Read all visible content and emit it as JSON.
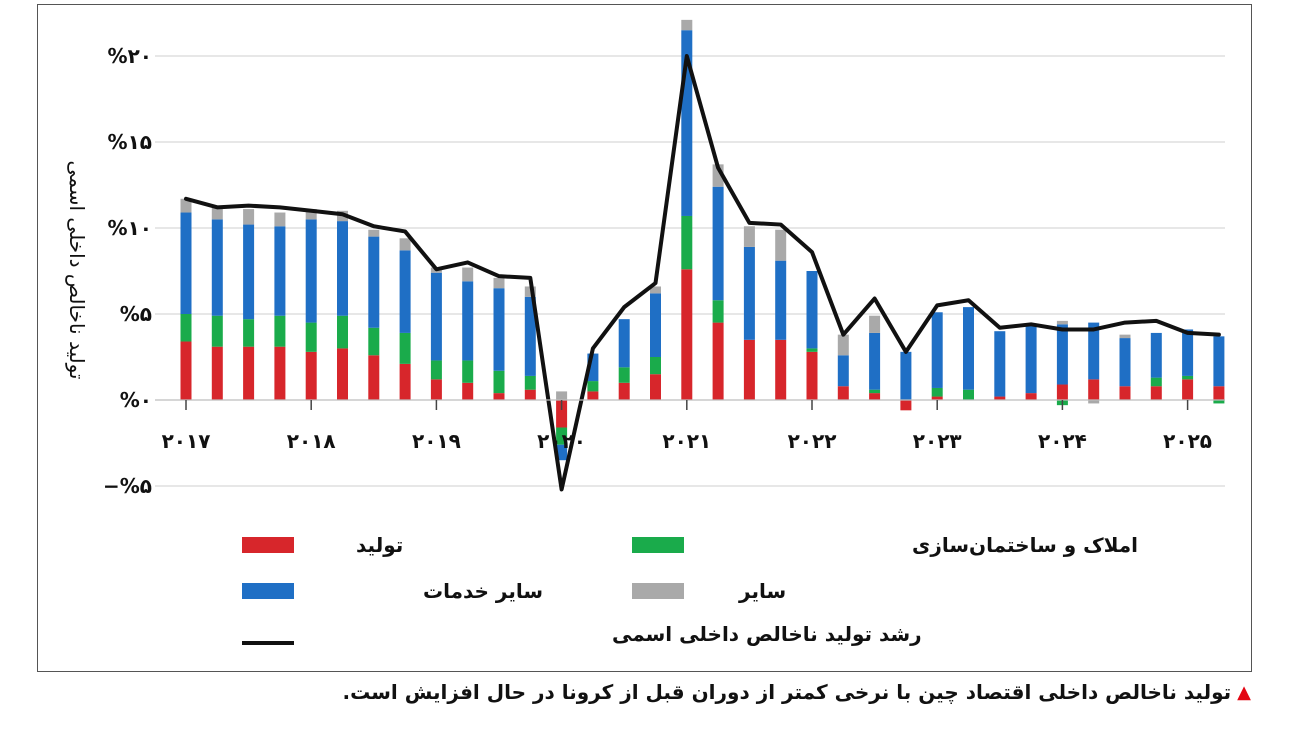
{
  "chart_data": {
    "type": "bar",
    "ylabel": "تولید ناخالص داخلی اسمی",
    "ylim": [
      -5,
      20
    ],
    "yticks": [
      -5,
      0,
      5,
      10,
      15,
      20
    ],
    "ytick_labels": [
      "−%۵",
      "%۰",
      "%۵",
      "%۱۰",
      "%۱۵",
      "%۲۰"
    ],
    "year_labels": [
      {
        "label": "۲۰۱۷",
        "index": 0
      },
      {
        "label": "۲۰۱۸",
        "index": 4
      },
      {
        "label": "۲۰۱۹",
        "index": 8
      },
      {
        "label": "۲۰۲۰",
        "index": 12
      },
      {
        "label": "۲۰۲۱",
        "index": 16
      },
      {
        "label": "۲۰۲۲",
        "index": 20
      },
      {
        "label": "۲۰۲۳",
        "index": 24
      },
      {
        "label": "۲۰۲۴",
        "index": 28
      },
      {
        "label": "۲۰۲۵",
        "index": 32
      }
    ],
    "categories": [
      "2017Q1",
      "2017Q2",
      "2017Q3",
      "2017Q4",
      "2018Q1",
      "2018Q2",
      "2018Q3",
      "2018Q4",
      "2019Q1",
      "2019Q2",
      "2019Q3",
      "2019Q4",
      "2020Q1",
      "2020Q2",
      "2020Q3",
      "2020Q4",
      "2021Q1",
      "2021Q2",
      "2021Q3",
      "2021Q4",
      "2022Q1",
      "2022Q2",
      "2022Q3",
      "2022Q4",
      "2023Q1",
      "2023Q2",
      "2023Q3",
      "2023Q4",
      "2024Q1",
      "2024Q2",
      "2024Q3",
      "2024Q4",
      "2025Q1",
      "2025Q2"
    ],
    "series": [
      {
        "name": "تولید",
        "color": "#d7262b",
        "values": [
          3.4,
          3.1,
          3.1,
          3.1,
          2.8,
          3.0,
          2.6,
          2.1,
          1.2,
          1.0,
          0.4,
          0.6,
          -1.6,
          0.5,
          1.0,
          1.5,
          7.6,
          4.5,
          3.5,
          3.5,
          2.8,
          0.8,
          0.4,
          -0.6,
          0.2,
          0.0,
          0.2,
          0.4,
          0.9,
          1.2,
          0.8,
          0.8,
          1.2,
          0.8
        ]
      },
      {
        "name": "املاک و ساختمان‌سازی",
        "color": "#1aab4b",
        "values": [
          1.6,
          1.8,
          1.6,
          1.8,
          1.7,
          1.9,
          1.6,
          1.8,
          1.1,
          1.3,
          1.3,
          0.8,
          -1.0,
          0.6,
          0.9,
          1.0,
          3.1,
          1.3,
          0.0,
          0.0,
          0.2,
          0.0,
          0.2,
          0.0,
          0.5,
          0.6,
          0.0,
          0.0,
          -0.3,
          0.0,
          0.0,
          0.5,
          0.2,
          -0.2
        ]
      },
      {
        "name": "سایر خدمات",
        "color": "#1f6fc5",
        "values": [
          5.9,
          5.6,
          5.5,
          5.2,
          6.0,
          5.5,
          5.3,
          4.8,
          5.1,
          4.6,
          4.8,
          4.6,
          -0.9,
          1.6,
          2.8,
          3.7,
          10.8,
          6.6,
          5.4,
          4.6,
          4.5,
          1.8,
          3.3,
          2.8,
          4.4,
          4.8,
          3.8,
          3.9,
          3.5,
          3.3,
          2.8,
          2.6,
          2.7,
          2.9
        ]
      },
      {
        "name": "سایر",
        "color": "#a9a9a9",
        "values": [
          0.8,
          0.7,
          0.9,
          0.8,
          0.6,
          0.6,
          0.4,
          0.7,
          0.3,
          0.8,
          0.6,
          0.6,
          0.5,
          0.0,
          0.0,
          0.4,
          0.6,
          1.3,
          1.2,
          1.8,
          0.0,
          1.2,
          1.0,
          0.0,
          0.0,
          0.0,
          0.0,
          0.0,
          0.2,
          -0.2,
          0.2,
          0.0,
          0.0,
          0.0
        ]
      }
    ],
    "line": {
      "name": "رشد تولید ناخالص داخلی اسمی",
      "color": "#111111",
      "values": [
        11.7,
        11.2,
        11.3,
        11.2,
        11.0,
        10.8,
        10.1,
        9.8,
        7.6,
        8.0,
        7.2,
        7.1,
        -5.2,
        3.0,
        5.4,
        6.8,
        20.0,
        13.5,
        10.3,
        10.2,
        8.6,
        3.8,
        5.9,
        2.8,
        5.5,
        5.8,
        4.2,
        4.4,
        4.1,
        4.1,
        4.5,
        4.6,
        3.9,
        3.8
      ]
    }
  },
  "legend": {
    "items": [
      {
        "label": "تولید",
        "color": "#d7262b"
      },
      {
        "label": "املاک و ساختمان‌سازی",
        "color": "#1aab4b"
      },
      {
        "label": "سایر خدمات",
        "color": "#1f6fc5"
      },
      {
        "label": "سایر",
        "color": "#a9a9a9"
      },
      {
        "label": "رشد تولید ناخالص داخلی اسمی",
        "color": "#111111"
      }
    ]
  },
  "caption": {
    "text": "تولید ناخالص داخلی اقتصاد چین با نرخی کمتر از دوران قبل از کرونا در حال افزایش است.",
    "marker_color": "#e30613"
  }
}
